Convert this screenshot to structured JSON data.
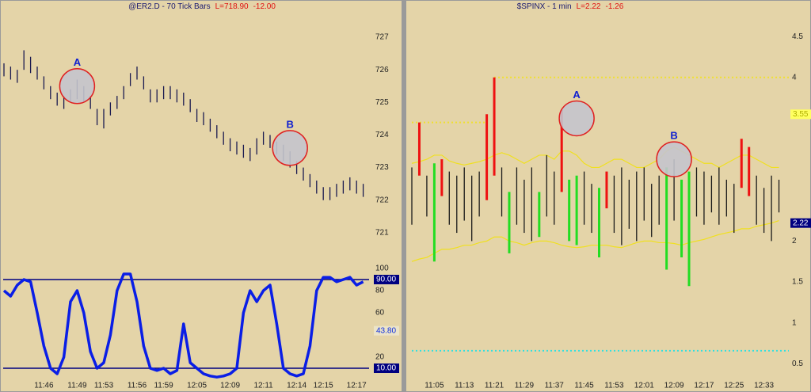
{
  "chart_data": [
    {
      "type": "ohlc",
      "title": "@ER2.D - 70 Tick Bars",
      "last_label": "L=718.90",
      "change_label": "-12.00",
      "color": "#1a1a50",
      "high": [
        726.2,
        726.1,
        726.0,
        726.6,
        726.4,
        726.1,
        725.8,
        725.5,
        725.3,
        725.2,
        725.4,
        725.7,
        725.5,
        725.2,
        724.8,
        724.8,
        725.0,
        725.2,
        725.5,
        725.9,
        726.1,
        725.8,
        725.4,
        725.4,
        725.5,
        725.5,
        725.4,
        725.3,
        725.1,
        724.8,
        724.7,
        724.5,
        724.3,
        724.1,
        723.9,
        723.8,
        723.7,
        723.6,
        723.9,
        724.1,
        724.0,
        723.8,
        723.7,
        723.5,
        723.2,
        723.0,
        722.8,
        722.6,
        722.4,
        722.4,
        722.5,
        722.6,
        722.7,
        722.6,
        722.5
      ],
      "low": [
        725.8,
        725.7,
        725.6,
        726.0,
        725.9,
        725.7,
        725.4,
        725.1,
        724.9,
        724.8,
        725.0,
        725.1,
        725.0,
        724.8,
        724.3,
        724.2,
        724.6,
        724.8,
        725.1,
        725.5,
        725.7,
        725.4,
        725.0,
        725.0,
        725.1,
        725.1,
        725.0,
        724.9,
        724.7,
        724.4,
        724.3,
        724.1,
        723.9,
        723.7,
        723.5,
        723.4,
        723.3,
        723.2,
        723.4,
        723.7,
        723.6,
        723.4,
        723.2,
        723.0,
        722.8,
        722.6,
        722.4,
        722.2,
        722.0,
        722.0,
        722.1,
        722.2,
        722.3,
        722.2,
        722.1
      ],
      "ylim": [
        720,
        727.9
      ],
      "yticks": [
        721,
        722,
        723,
        724,
        725,
        726,
        727
      ],
      "annotations": [
        {
          "text": "A",
          "index": 11,
          "y": 725.5
        },
        {
          "text": "B",
          "index": 43,
          "y": 723.6
        }
      ]
    },
    {
      "type": "line",
      "categories": [
        null,
        null,
        null,
        null,
        null,
        null,
        "11:46",
        null,
        null,
        null,
        null,
        "11:49",
        null,
        null,
        null,
        "11:53",
        null,
        null,
        null,
        null,
        "11:56",
        null,
        null,
        null,
        "11:59",
        null,
        null,
        null,
        null,
        "12:05",
        null,
        null,
        null,
        null,
        "12:09",
        null,
        null,
        null,
        null,
        "12:11",
        null,
        null,
        null,
        null,
        "12:14",
        null,
        null,
        null,
        "12:15",
        null,
        null,
        null,
        null,
        "12:17",
        null
      ],
      "series": [
        {
          "color": "#0a1ee6",
          "values": [
            80,
            75,
            85,
            90,
            88,
            60,
            30,
            10,
            5,
            20,
            70,
            80,
            60,
            25,
            10,
            15,
            40,
            80,
            95,
            95,
            70,
            30,
            10,
            8,
            10,
            5,
            8,
            50,
            15,
            10,
            5,
            3,
            2,
            3,
            5,
            10,
            60,
            80,
            70,
            80,
            85,
            50,
            10,
            5,
            3,
            5,
            30,
            80,
            92,
            92,
            88,
            90,
            92,
            85,
            88
          ]
        }
      ],
      "ylim": [
        0,
        100
      ],
      "yticks": [
        20,
        60,
        80,
        100
      ],
      "levels": [
        {
          "value": 90,
          "label": "90.00",
          "color": "#000080",
          "style": "solid"
        },
        {
          "value": 10,
          "label": "10.00",
          "color": "#000080",
          "style": "solid"
        }
      ],
      "value_boxes": [
        {
          "value": 43.8,
          "label": "43.80",
          "fill": "#ece4c8",
          "text_color": "#1030e0"
        }
      ]
    },
    {
      "type": "ohlc",
      "title": "$SPINX - 1 min",
      "last_label": "L=2.22",
      "change_label": "-1.26",
      "color": "#1a1a1a",
      "categories": [
        null,
        null,
        null,
        "11:05",
        null,
        null,
        null,
        "11:13",
        null,
        null,
        null,
        "11:21",
        null,
        null,
        null,
        "11:29",
        null,
        null,
        null,
        "11:37",
        null,
        null,
        null,
        "11:45",
        null,
        null,
        null,
        "11:53",
        null,
        null,
        null,
        "12:01",
        null,
        null,
        null,
        "12:09",
        null,
        null,
        null,
        "12:17",
        null,
        null,
        null,
        "12:25",
        null,
        null,
        null,
        "12:33",
        null,
        null
      ],
      "high": [
        2.9,
        3.45,
        2.8,
        2.95,
        3.0,
        2.85,
        2.8,
        2.9,
        2.8,
        2.85,
        3.55,
        4.0,
        2.9,
        2.6,
        2.9,
        2.75,
        2.9,
        2.6,
        3.05,
        2.85,
        3.6,
        2.75,
        2.8,
        2.85,
        2.7,
        2.65,
        2.85,
        2.8,
        2.9,
        2.75,
        2.85,
        2.9,
        2.7,
        2.8,
        2.9,
        3.0,
        2.75,
        2.85,
        2.9,
        2.85,
        2.8,
        2.9,
        2.75,
        2.7,
        3.25,
        3.15,
        2.8,
        2.65,
        2.8,
        2.75
      ],
      "low": [
        2.2,
        2.8,
        2.3,
        1.75,
        2.55,
        2.2,
        2.1,
        2.25,
        2.0,
        2.3,
        2.5,
        2.8,
        2.3,
        1.85,
        2.2,
        2.1,
        2.0,
        2.05,
        2.3,
        2.2,
        2.6,
        2.0,
        1.95,
        2.2,
        2.1,
        1.8,
        2.4,
        2.1,
        1.95,
        2.15,
        2.0,
        2.25,
        2.05,
        2.2,
        1.65,
        2.25,
        1.8,
        1.45,
        2.3,
        2.2,
        2.35,
        2.2,
        2.3,
        2.1,
        2.65,
        2.55,
        2.2,
        2.1,
        2.0,
        2.35
      ],
      "colors": [
        "#1a1a1a",
        "#ee1111",
        "#1a1a1a",
        "#22dd22",
        "#ee1111",
        "#1a1a1a",
        "#1a1a1a",
        "#1a1a1a",
        "#1a1a1a",
        "#1a1a1a",
        "#ee1111",
        "#ee1111",
        "#1a1a1a",
        "#22dd22",
        "#1a1a1a",
        "#1a1a1a",
        "#1a1a1a",
        "#22dd22",
        "#1a1a1a",
        "#1a1a1a",
        "#ee1111",
        "#22dd22",
        "#22dd22",
        "#1a1a1a",
        "#1a1a1a",
        "#22dd22",
        "#ee1111",
        "#1a1a1a",
        "#1a1a1a",
        "#1a1a1a",
        "#1a1a1a",
        "#1a1a1a",
        "#1a1a1a",
        "#1a1a1a",
        "#22dd22",
        "#1a1a1a",
        "#22dd22",
        "#22dd22",
        "#1a1a1a",
        "#1a1a1a",
        "#1a1a1a",
        "#1a1a1a",
        "#1a1a1a",
        "#1a1a1a",
        "#ee1111",
        "#ee1111",
        "#1a1a1a",
        "#1a1a1a",
        "#1a1a1a",
        "#1a1a1a"
      ],
      "bands": [
        {
          "color": "#f0e020",
          "values": [
            2.95,
            2.97,
            3.0,
            3.05,
            3.05,
            2.98,
            2.95,
            2.93,
            2.95,
            2.97,
            3.0,
            3.05,
            3.08,
            3.05,
            3.0,
            2.95,
            3.0,
            3.05,
            3.05,
            3.0,
            3.1,
            3.1,
            3.05,
            2.95,
            2.9,
            2.9,
            2.95,
            3.0,
            3.0,
            2.95,
            2.9,
            2.9,
            2.95,
            3.0,
            3.1,
            3.15,
            3.1,
            3.05,
            3.0,
            2.95,
            2.95,
            2.9,
            2.95,
            3.0,
            3.05,
            3.05,
            3.0,
            2.95,
            2.9,
            2.9
          ]
        },
        {
          "color": "#f0e020",
          "values": [
            1.75,
            1.78,
            1.8,
            1.85,
            1.9,
            1.9,
            1.92,
            1.95,
            1.95,
            1.98,
            2.0,
            2.05,
            2.05,
            2.0,
            1.98,
            1.95,
            1.98,
            2.0,
            2.0,
            1.98,
            1.95,
            1.93,
            1.92,
            1.93,
            1.95,
            1.95,
            1.95,
            1.93,
            1.92,
            1.95,
            1.98,
            2.0,
            2.0,
            1.98,
            1.98,
            1.97,
            1.95,
            1.98,
            2.0,
            2.02,
            2.05,
            2.08,
            2.1,
            2.12,
            2.15,
            2.15,
            2.18,
            2.2,
            2.22,
            2.25
          ]
        }
      ],
      "levels": [
        {
          "value": 4,
          "start": 11,
          "color": "#f0e030",
          "style": "dotted"
        },
        {
          "value": 3.45,
          "start": 0,
          "end": 10,
          "color": "#f0e030",
          "style": "dotted"
        },
        {
          "value": 0.66,
          "start": 0,
          "color": "#30e0e0",
          "style": "dotted"
        }
      ],
      "value_boxes": [
        {
          "value": 3.55,
          "label": "3.55",
          "fill": "#ffff60",
          "text_color": "#b0b000"
        },
        {
          "value": 2.22,
          "label": "2.22",
          "fill": "#000080",
          "text_color": "#ffffff"
        }
      ],
      "ylim": [
        0.3,
        4.85
      ],
      "yticks": [
        0.5,
        1,
        1.5,
        2,
        4,
        4.5
      ],
      "annotations": [
        {
          "text": "A",
          "index": 22,
          "y": 3.5
        },
        {
          "text": "B",
          "index": 35,
          "y": 3.0
        }
      ]
    }
  ]
}
